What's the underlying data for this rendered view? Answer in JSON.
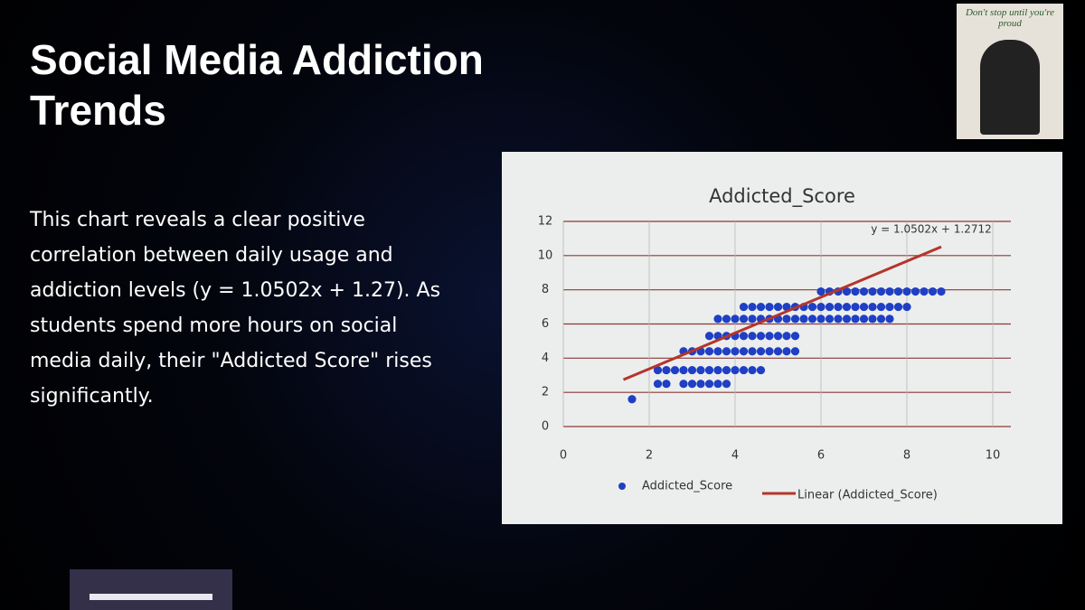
{
  "slide": {
    "title": "Social Media Addiction Trends",
    "body": "This chart reveals a clear positive correlation between daily usage and addiction levels (y = 1.0502x + 1.27). As students spend more hours on social media daily, their \"Addicted Score\" rises significantly.",
    "badge": "Don't stop until you're proud"
  },
  "chart_data": {
    "type": "scatter",
    "title": "Addicted_Score",
    "x": [
      1.6,
      2.2,
      2.4,
      2.8,
      3.0,
      3.2,
      3.4,
      3.6,
      3.8,
      2.2,
      2.4,
      2.6,
      2.8,
      3.0,
      3.2,
      3.4,
      3.6,
      3.8,
      4.0,
      4.2,
      4.4,
      4.6,
      2.8,
      3.0,
      3.2,
      3.4,
      3.6,
      3.8,
      4.0,
      4.2,
      4.4,
      4.6,
      4.8,
      5.0,
      5.2,
      5.4,
      3.4,
      3.6,
      3.8,
      4.0,
      4.2,
      4.4,
      4.6,
      4.8,
      5.0,
      5.2,
      5.4,
      3.6,
      3.8,
      4.0,
      4.2,
      4.4,
      4.6,
      4.8,
      5.0,
      5.2,
      5.4,
      5.6,
      5.8,
      6.0,
      6.2,
      6.4,
      6.6,
      6.8,
      7.0,
      7.2,
      7.4,
      7.6,
      4.2,
      4.4,
      4.6,
      4.8,
      5.0,
      5.2,
      5.4,
      5.6,
      5.8,
      6.0,
      6.2,
      6.4,
      6.6,
      6.8,
      7.0,
      7.2,
      7.4,
      7.6,
      7.8,
      8.0,
      6.0,
      6.2,
      6.4,
      6.6,
      6.8,
      7.0,
      7.2,
      7.4,
      7.6,
      7.8,
      8.0,
      8.2,
      8.4,
      8.6,
      8.8
    ],
    "series": [
      {
        "name": "Addicted_Score",
        "color": "#1f3fc4",
        "values": [
          1.6,
          2.5,
          2.5,
          2.5,
          2.5,
          2.5,
          2.5,
          2.5,
          2.5,
          3.3,
          3.3,
          3.3,
          3.3,
          3.3,
          3.3,
          3.3,
          3.3,
          3.3,
          3.3,
          3.3,
          3.3,
          3.3,
          4.4,
          4.4,
          4.4,
          4.4,
          4.4,
          4.4,
          4.4,
          4.4,
          4.4,
          4.4,
          4.4,
          4.4,
          4.4,
          4.4,
          5.3,
          5.3,
          5.3,
          5.3,
          5.3,
          5.3,
          5.3,
          5.3,
          5.3,
          5.3,
          5.3,
          6.3,
          6.3,
          6.3,
          6.3,
          6.3,
          6.3,
          6.3,
          6.3,
          6.3,
          6.3,
          6.3,
          6.3,
          6.3,
          6.3,
          6.3,
          6.3,
          6.3,
          6.3,
          6.3,
          6.3,
          6.3,
          7.0,
          7.0,
          7.0,
          7.0,
          7.0,
          7.0,
          7.0,
          7.0,
          7.0,
          7.0,
          7.0,
          7.0,
          7.0,
          7.0,
          7.0,
          7.0,
          7.0,
          7.0,
          7.0,
          7.0,
          7.9,
          7.9,
          7.9,
          7.9,
          7.9,
          7.9,
          7.9,
          7.9,
          7.9,
          7.9,
          7.9,
          7.9,
          7.9,
          7.9,
          7.9
        ]
      }
    ],
    "trendline": {
      "name": "Linear (Addicted_Score)",
      "color": "#b5352a",
      "label": "y = 1.0502x + 1.2712",
      "slope": 1.0502,
      "intercept": 1.2712,
      "x_range": [
        1.4,
        8.8
      ]
    },
    "xlim": [
      0,
      10
    ],
    "xticks": [
      0,
      2,
      4,
      6,
      8,
      10
    ],
    "ylim": [
      0,
      12
    ],
    "yticks": [
      0,
      2,
      4,
      6,
      8,
      10,
      12
    ],
    "grid": true
  }
}
